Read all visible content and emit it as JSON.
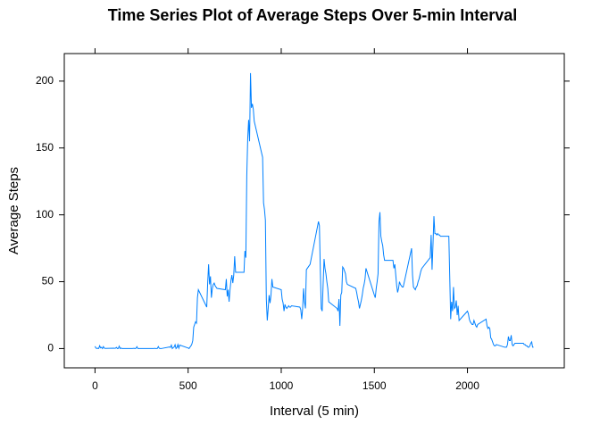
{
  "chart_data": {
    "type": "line",
    "title": "Time Series Plot of Average Steps Over 5-min Interval",
    "x_label": "Interval (5 min)",
    "y_label": "Average Steps",
    "x": [
      0,
      5,
      10,
      15,
      20,
      25,
      30,
      35,
      40,
      45,
      50,
      55,
      100,
      105,
      110,
      115,
      120,
      125,
      130,
      135,
      140,
      145,
      150,
      155,
      200,
      205,
      210,
      215,
      220,
      225,
      230,
      235,
      240,
      245,
      250,
      255,
      300,
      305,
      310,
      315,
      320,
      325,
      330,
      335,
      340,
      345,
      350,
      355,
      400,
      405,
      410,
      415,
      420,
      425,
      430,
      435,
      440,
      445,
      450,
      455,
      500,
      505,
      510,
      515,
      520,
      525,
      530,
      535,
      540,
      545,
      550,
      555,
      600,
      605,
      610,
      615,
      620,
      625,
      630,
      635,
      640,
      645,
      650,
      655,
      700,
      705,
      710,
      715,
      720,
      725,
      730,
      735,
      740,
      745,
      750,
      755,
      800,
      805,
      810,
      815,
      820,
      825,
      830,
      835,
      840,
      845,
      850,
      855,
      900,
      905,
      910,
      915,
      920,
      925,
      930,
      935,
      940,
      945,
      950,
      955,
      1000,
      1005,
      1010,
      1015,
      1020,
      1025,
      1030,
      1035,
      1040,
      1045,
      1050,
      1055,
      1100,
      1105,
      1110,
      1115,
      1120,
      1125,
      1130,
      1135,
      1140,
      1145,
      1150,
      1155,
      1200,
      1205,
      1210,
      1215,
      1220,
      1225,
      1230,
      1235,
      1240,
      1245,
      1250,
      1255,
      1300,
      1305,
      1310,
      1315,
      1320,
      1325,
      1330,
      1335,
      1340,
      1345,
      1350,
      1355,
      1400,
      1405,
      1410,
      1415,
      1420,
      1425,
      1430,
      1435,
      1440,
      1445,
      1450,
      1455,
      1500,
      1505,
      1510,
      1515,
      1520,
      1525,
      1530,
      1535,
      1540,
      1545,
      1550,
      1555,
      1600,
      1605,
      1610,
      1615,
      1620,
      1625,
      1630,
      1635,
      1640,
      1645,
      1650,
      1655,
      1700,
      1705,
      1710,
      1715,
      1720,
      1725,
      1730,
      1735,
      1740,
      1745,
      1750,
      1755,
      1800,
      1805,
      1810,
      1815,
      1820,
      1825,
      1830,
      1835,
      1840,
      1845,
      1850,
      1855,
      1900,
      1905,
      1910,
      1915,
      1920,
      1925,
      1930,
      1935,
      1940,
      1945,
      1950,
      1955,
      2000,
      2005,
      2010,
      2015,
      2020,
      2025,
      2030,
      2035,
      2040,
      2045,
      2050,
      2055,
      2100,
      2105,
      2110,
      2115,
      2120,
      2125,
      2130,
      2135,
      2140,
      2145,
      2150,
      2155,
      2200,
      2205,
      2210,
      2215,
      2220,
      2225,
      2230,
      2235,
      2240,
      2245,
      2250,
      2255,
      2300,
      2305,
      2310,
      2315,
      2320,
      2325,
      2330,
      2335,
      2340,
      2345,
      2350,
      2355
    ],
    "series": [
      {
        "name": "Average Steps",
        "color": "#0080ff",
        "values": [
          1.7,
          0.3,
          0.1,
          0.2,
          0.1,
          2.1,
          0.5,
          0.9,
          0,
          1.5,
          0.3,
          0.1,
          0.3,
          0.2,
          0.3,
          0.9,
          0,
          0.1,
          1.8,
          0,
          0.4,
          0,
          0,
          0,
          0,
          0.1,
          0.2,
          0,
          0.2,
          1.4,
          0,
          0,
          0,
          0,
          0,
          0,
          0,
          0,
          0,
          0,
          0.2,
          0,
          0,
          0.1,
          1.5,
          0.2,
          0,
          0,
          1.2,
          0.9,
          2.6,
          0,
          0.7,
          1.2,
          2.9,
          0,
          0.8,
          3,
          0.3,
          2.6,
          0.4,
          0,
          1.1,
          2,
          3.3,
          6,
          16,
          18,
          20,
          19,
          38,
          44,
          31,
          49,
          63,
          48,
          54,
          38,
          45,
          48,
          49,
          47,
          46,
          45,
          44,
          52,
          39,
          44,
          35,
          44,
          51,
          55,
          49,
          55,
          69,
          57,
          57,
          73,
          68,
          129,
          157,
          171,
          155,
          206,
          180,
          183,
          179,
          170,
          143,
          109,
          104,
          96,
          37,
          21,
          30,
          40,
          34,
          40,
          52,
          46,
          44,
          37,
          34,
          28,
          33,
          31,
          30,
          31,
          32,
          31,
          31,
          32,
          31,
          29,
          22,
          30,
          45,
          35,
          30,
          59,
          60,
          61,
          62,
          63,
          95,
          92,
          58,
          30,
          28,
          48,
          67,
          60,
          56,
          50,
          45,
          35,
          30,
          28,
          37,
          17,
          40,
          42,
          61,
          60,
          58,
          56,
          50,
          48,
          45,
          42,
          38,
          35,
          30,
          33,
          36,
          40,
          45,
          48,
          52,
          60,
          40,
          38,
          45,
          50,
          56,
          95,
          102,
          84,
          80,
          77,
          70,
          66,
          66,
          60,
          63,
          55,
          47,
          42,
          45,
          50,
          48,
          47,
          46,
          46,
          75,
          55,
          46,
          45,
          44,
          46,
          47,
          50,
          52,
          55,
          58,
          60,
          68,
          85,
          59,
          78,
          99,
          86,
          86,
          85,
          86,
          85,
          85,
          84,
          84,
          53,
          22,
          35,
          28,
          46,
          30,
          31,
          36,
          25,
          32,
          21,
          28,
          26,
          22,
          20,
          19,
          18,
          18,
          21,
          19,
          17,
          16,
          18,
          22,
          17,
          15,
          16,
          15,
          8,
          7,
          5,
          3,
          2,
          2,
          3,
          1,
          1,
          1,
          3,
          9,
          6,
          6,
          10,
          3,
          2,
          3,
          4,
          4,
          3,
          3,
          2,
          2,
          1,
          1,
          2,
          4,
          5,
          1,
          1
        ]
      }
    ],
    "xlim": [
      -165,
      2520
    ],
    "ylim": [
      -14.4,
      220.6
    ],
    "xticks": [
      0,
      500,
      1000,
      1500,
      2000
    ],
    "yticks": [
      0,
      50,
      100,
      150,
      200
    ]
  }
}
